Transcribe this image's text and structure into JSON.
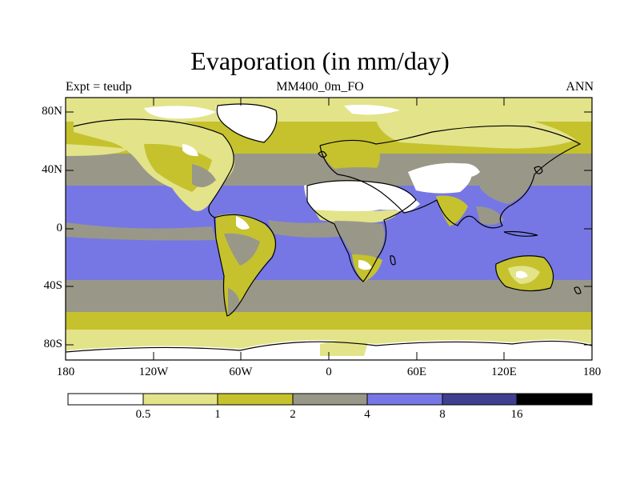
{
  "title": "Evaporation (in mm/day)",
  "subtitle_left": "Expt = teudp",
  "subtitle_center": "MM400_0m_FO",
  "subtitle_right": "ANN",
  "lat_ticks": [
    "80N",
    "40N",
    "0",
    "40S",
    "80S"
  ],
  "lon_ticks": [
    "180",
    "120W",
    "60W",
    "0",
    "60E",
    "120E",
    "180"
  ],
  "colorbar": {
    "colors": [
      "#ffffff",
      "#e3e38a",
      "#c5c22e",
      "#999888",
      "#7677e5",
      "#3f3f8f",
      "#000000"
    ],
    "labels": [
      "0.5",
      "1",
      "2",
      "4",
      "8",
      "16"
    ]
  },
  "legend_colors": {
    "lt_0_5": "#ffffff",
    "0_5_to_1": "#e3e38a",
    "1_to_2": "#c5c22e",
    "2_to_4": "#999888",
    "4_to_8": "#7677e5",
    "8_to_16": "#3f3f8f",
    "gt_16": "#000000"
  }
}
